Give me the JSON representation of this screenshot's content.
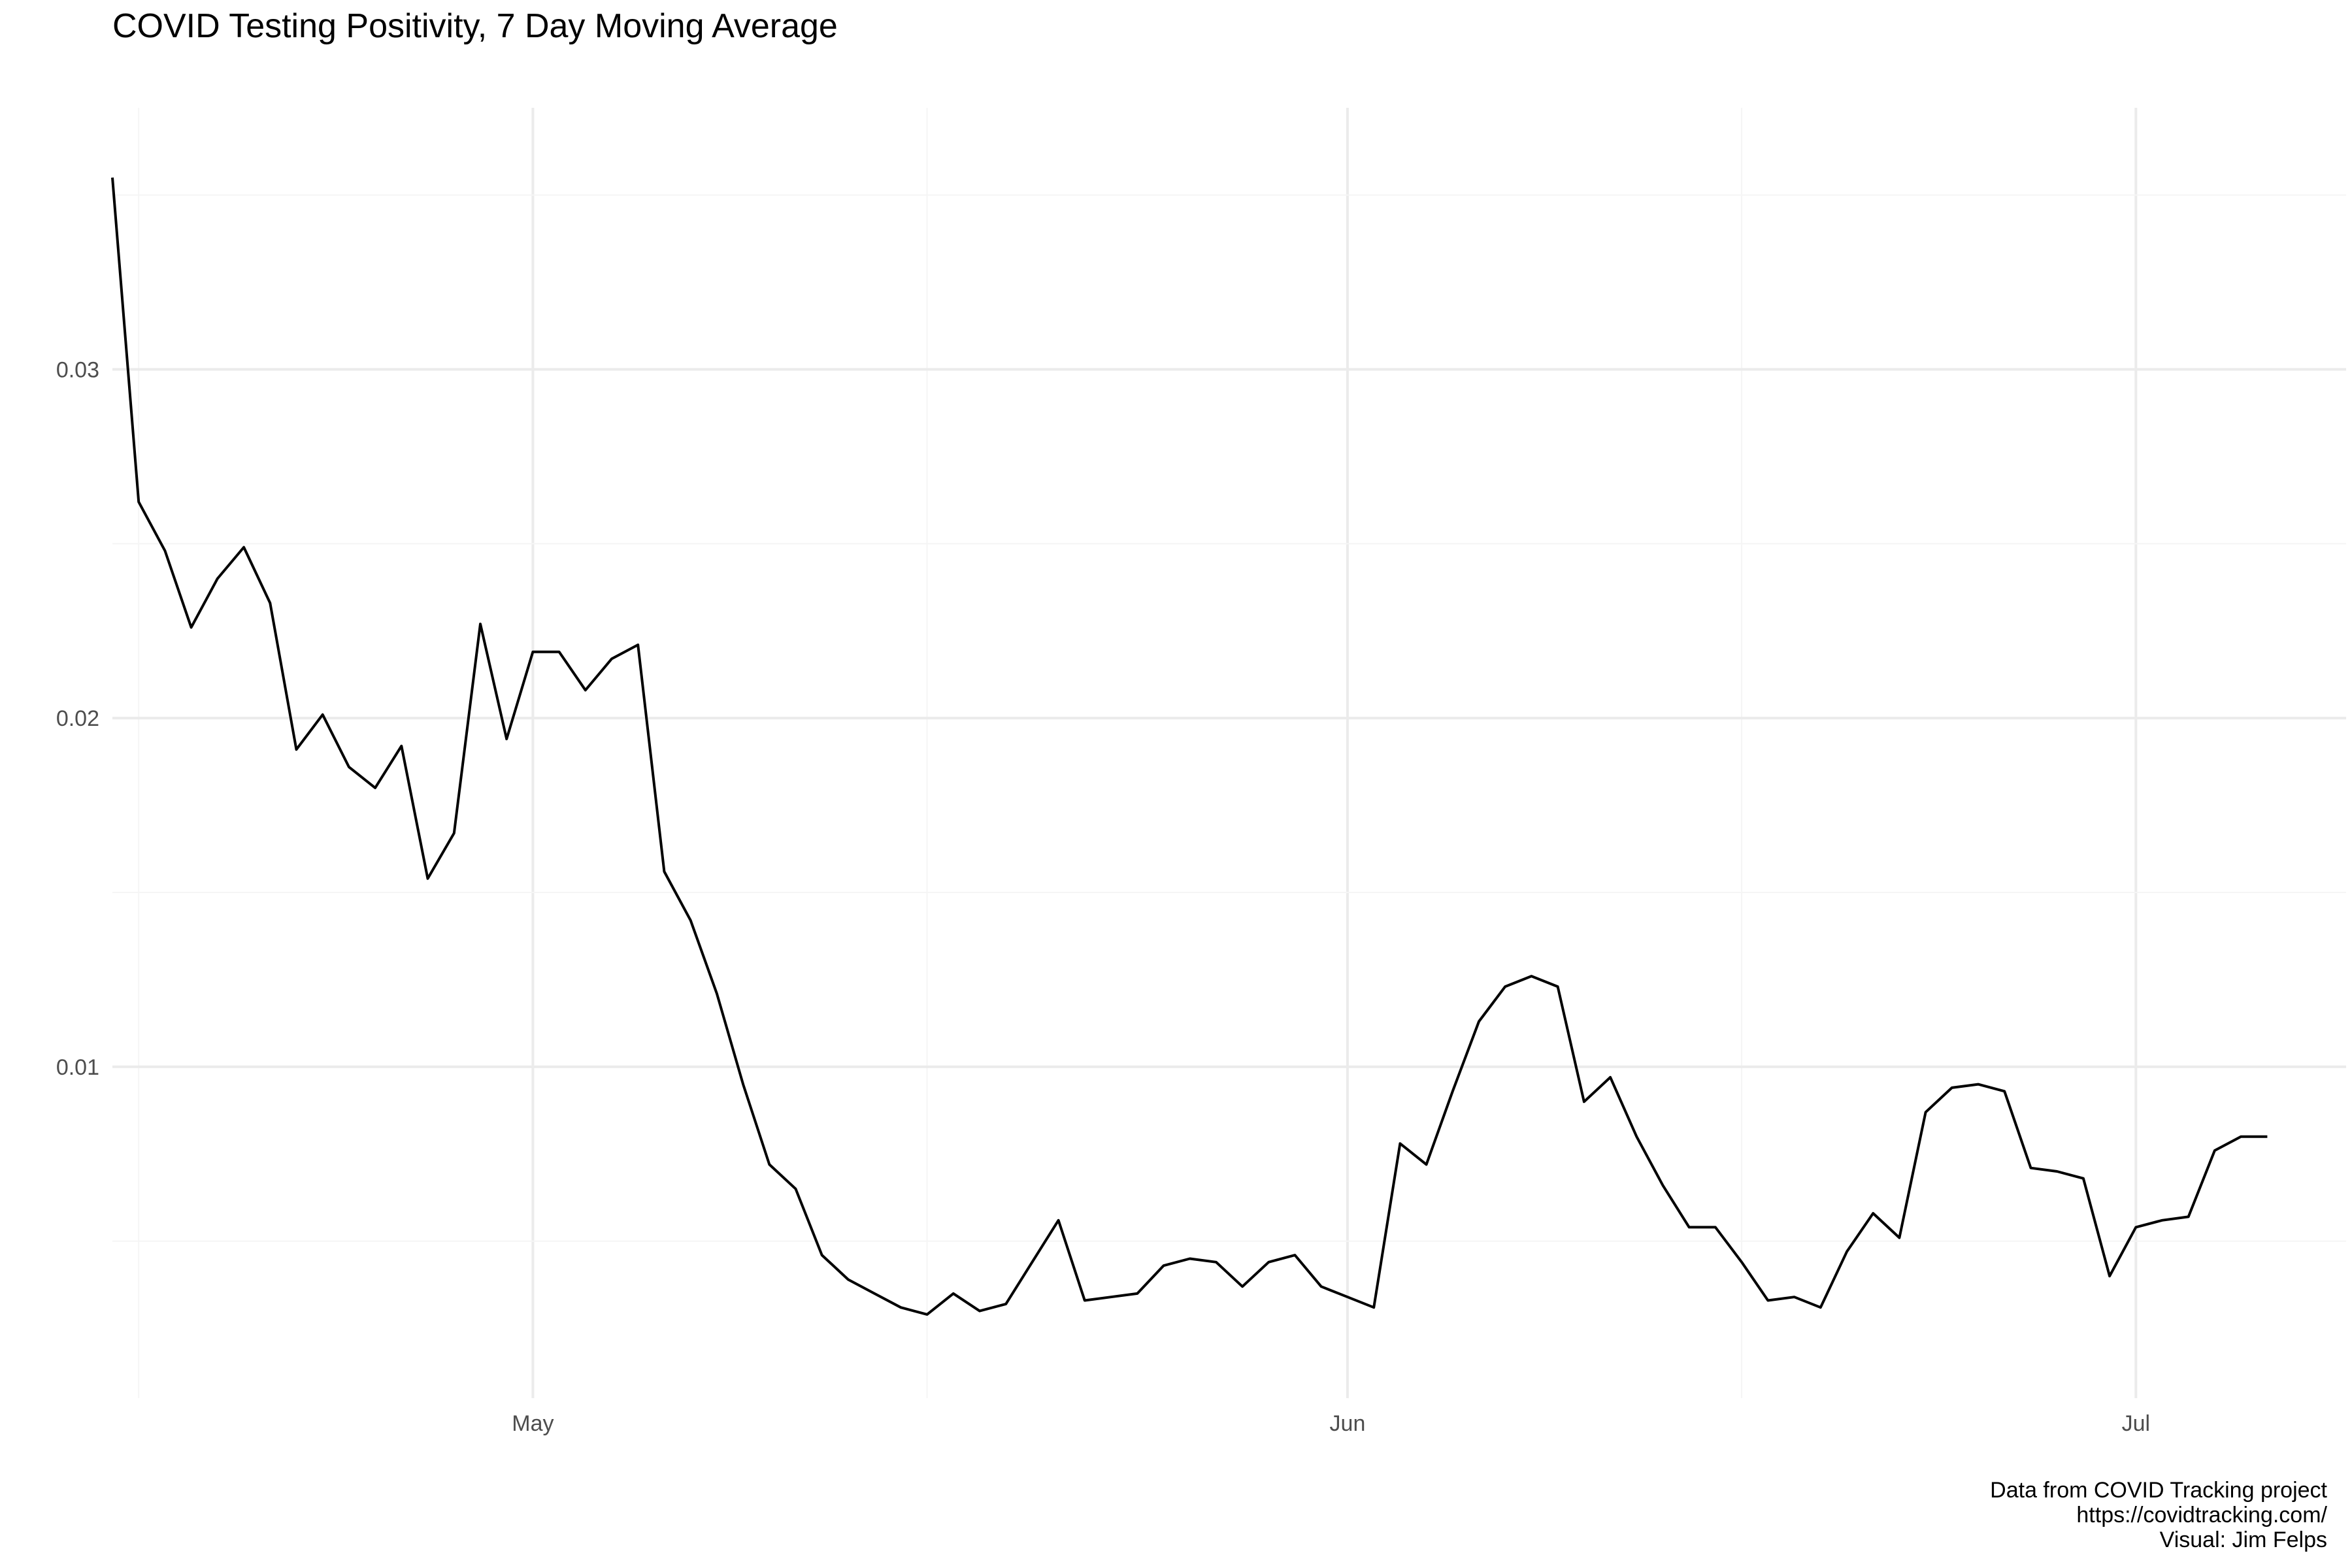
{
  "chart_data": {
    "type": "line",
    "title": "COVID Testing Positivity, 7 Day Moving Average",
    "xlabel": "",
    "ylabel": "",
    "x_ticks": [
      "May",
      "Jun",
      "Jul"
    ],
    "y_ticks": [
      "0.01",
      "0.02",
      "0.03"
    ],
    "xlim": [
      "2020-04-15",
      "2020-07-09"
    ],
    "ylim": [
      0.0005,
      0.0375
    ],
    "grid": true,
    "series": [
      {
        "x": [
          "2020-04-15",
          "2020-04-16",
          "2020-04-17",
          "2020-04-18",
          "2020-04-19",
          "2020-04-20",
          "2020-04-21",
          "2020-04-22",
          "2020-04-23",
          "2020-04-24",
          "2020-04-25",
          "2020-04-26",
          "2020-04-27",
          "2020-04-28",
          "2020-04-29",
          "2020-04-30",
          "2020-05-01",
          "2020-05-02",
          "2020-05-03",
          "2020-05-04",
          "2020-05-05",
          "2020-05-06",
          "2020-05-07",
          "2020-05-08",
          "2020-05-09",
          "2020-05-10",
          "2020-05-11",
          "2020-05-12",
          "2020-05-13",
          "2020-05-14",
          "2020-05-15",
          "2020-05-16",
          "2020-05-17",
          "2020-05-18",
          "2020-05-19",
          "2020-05-20",
          "2020-05-21",
          "2020-05-22",
          "2020-05-23",
          "2020-05-24",
          "2020-05-25",
          "2020-05-26",
          "2020-05-27",
          "2020-05-28",
          "2020-05-29",
          "2020-05-30",
          "2020-05-31",
          "2020-06-01",
          "2020-06-02",
          "2020-06-03",
          "2020-06-04",
          "2020-06-05",
          "2020-06-06",
          "2020-06-07",
          "2020-06-08",
          "2020-06-09",
          "2020-06-10",
          "2020-06-11",
          "2020-06-12",
          "2020-06-13",
          "2020-06-14",
          "2020-06-15",
          "2020-06-16",
          "2020-06-17",
          "2020-06-18",
          "2020-06-19",
          "2020-06-20",
          "2020-06-21",
          "2020-06-22",
          "2020-06-23",
          "2020-06-24",
          "2020-06-25",
          "2020-06-26",
          "2020-06-27",
          "2020-06-28",
          "2020-06-29",
          "2020-06-30",
          "2020-07-01",
          "2020-07-02",
          "2020-07-03",
          "2020-07-04",
          "2020-07-05",
          "2020-07-06"
        ],
        "values": [
          0.0355,
          0.0262,
          0.0248,
          0.0226,
          0.024,
          0.0249,
          0.0233,
          0.0191,
          0.0201,
          0.0186,
          0.018,
          0.0192,
          0.0154,
          0.0167,
          0.0227,
          0.0194,
          0.0219,
          0.0219,
          0.0208,
          0.0217,
          0.0221,
          0.0156,
          0.0142,
          0.0121,
          0.0095,
          0.0072,
          0.0065,
          0.0046,
          0.0039,
          0.0035,
          0.0031,
          0.0029,
          0.0035,
          0.003,
          0.0032,
          0.0044,
          0.0056,
          0.0033,
          0.0034,
          0.0035,
          0.0043,
          0.0045,
          0.0044,
          0.0037,
          0.0044,
          0.0046,
          0.0037,
          0.0034,
          0.0031,
          0.0078,
          0.0072,
          0.0093,
          0.0113,
          0.0123,
          0.0126,
          0.0123,
          0.009,
          0.0097,
          0.008,
          0.0066,
          0.0054,
          0.0054,
          0.0044,
          0.0033,
          0.0034,
          0.0031,
          0.0047,
          0.0058,
          0.0051,
          0.0087,
          0.0094,
          0.0095,
          0.0093,
          0.0071,
          0.007,
          0.0068,
          0.004,
          0.0054,
          0.0056,
          0.0057,
          0.0076,
          0.008,
          0.008
        ]
      }
    ]
  },
  "caption": {
    "line1": "Data from COVID Tracking project",
    "line2": "https://covidtracking.com/",
    "line3": "Visual: Jim Felps"
  },
  "colors": {
    "line": "#000000",
    "grid_major": "#ebebeb",
    "grid_minor": "#f5f5f5",
    "tick_text": "#4d4d4d"
  }
}
